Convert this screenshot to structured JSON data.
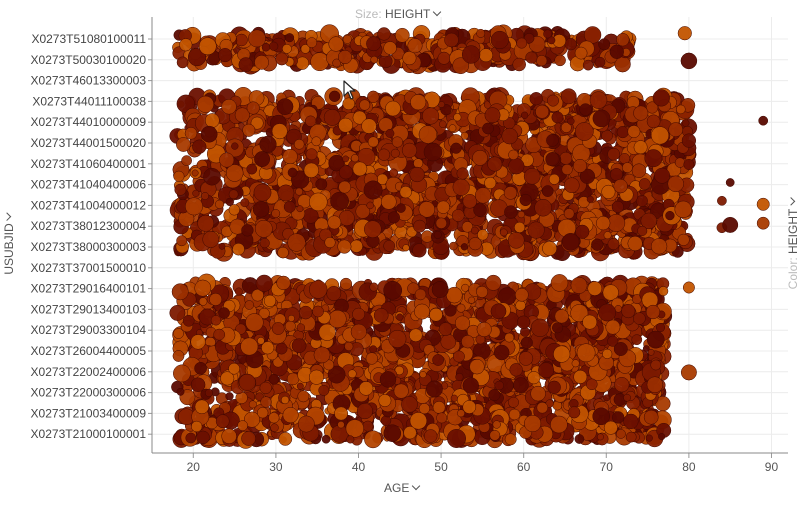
{
  "controls": {
    "size_label": "Size:",
    "size_value": "HEIGHT",
    "color_label": "Color:",
    "color_value": "HEIGHT",
    "x_axis": "AGE",
    "y_axis": "USUBJID"
  },
  "chart_data": {
    "type": "scatter",
    "xlabel": "AGE",
    "ylabel": "USUBJID",
    "size_by": "HEIGHT",
    "color_by": "HEIGHT",
    "xlim": [
      15,
      92
    ],
    "xticks": [
      20,
      30,
      40,
      50,
      60,
      70,
      80,
      90
    ],
    "grid": true,
    "categories": [
      "X0273T51080100011",
      "X0273T50030100020",
      "X0273T46013300003",
      "X0273T44011100038",
      "X0273T44010000009",
      "X0273T44001500020",
      "X0273T41060400001",
      "X0273T41040400006",
      "X0273T41004000012",
      "X0273T38012300004",
      "X0273T38000300003",
      "X0273T37001500010",
      "X0273T29016400101",
      "X0273T29013400103",
      "X0273T29003300104",
      "X0273T26004400005",
      "X0273T22002400006",
      "X0273T22000300006",
      "X0273T21003400009",
      "X0273T21000100001"
    ],
    "clusters": [
      {
        "start": "X0273T51080100011",
        "end": "X0273T50030100020",
        "x_min": 18,
        "x_max": 73,
        "x_outliers": [
          79.5
        ]
      },
      {
        "start": "X0273T44011100038",
        "end": "X0273T38000300003",
        "x_min": 18,
        "x_max": 80,
        "x_outliers": [
          84,
          85,
          89
        ]
      },
      {
        "start": "X0273T29016400101",
        "end": "X0273T21000100001",
        "x_min": 18,
        "x_max": 77,
        "x_outliers": [
          80
        ]
      }
    ],
    "color_range": [
      "#5c0a00",
      "#c25400"
    ],
    "highlighted_points": [
      {
        "category": "X0273T44001500020",
        "x": 80
      },
      {
        "category": "X0273T41060400001",
        "x": 80
      },
      {
        "category": "X0273T41004000012",
        "x": 89
      },
      {
        "category": "X0273T38012300004",
        "x": 84
      },
      {
        "category": "X0273T38012300004",
        "x": 85
      },
      {
        "category": "X0273T38012300004",
        "x": 89
      },
      {
        "category": "X0273T22002400006",
        "x": 80
      },
      {
        "category": "X0273T51080100011",
        "x": 72
      },
      {
        "category": "X0273T50030100020",
        "x": 80
      }
    ]
  }
}
